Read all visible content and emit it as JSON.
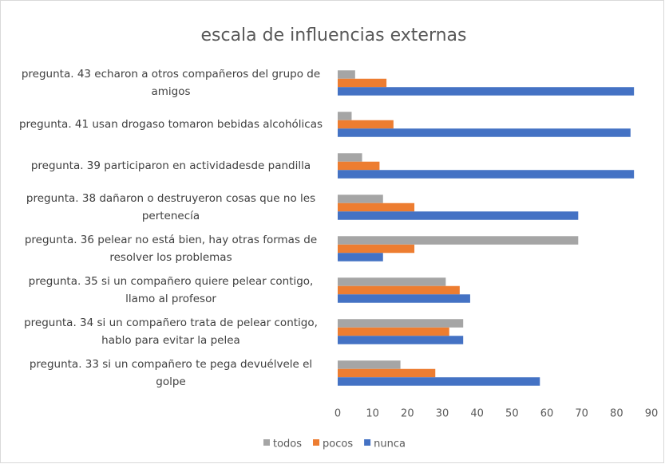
{
  "chart_data": {
    "type": "bar",
    "orientation": "horizontal",
    "title": "escala de influencias externas",
    "categories": [
      "pregunta. 43 echaron a otros compañeros del grupo de amigos",
      "pregunta. 41 usan drogaso tomaron bebidas alcohólicas",
      "pregunta. 39 participaron en actividadesde pandilla",
      "pregunta. 38 dañaron o destruyeron cosas que no les pertenecía",
      "pregunta. 36 pelear no está bien, hay otras formas de resolver los problemas",
      "pregunta. 35 si un compañero quiere pelear contigo, llamo al profesor",
      "pregunta. 34 si un compañero trata de pelear contigo, hablo para evitar la pelea",
      "pregunta. 33 si un compañero te pega devuélvele el golpe"
    ],
    "series": [
      {
        "name": "todos",
        "color": "#a5a5a5",
        "values": [
          5,
          4,
          7,
          13,
          69,
          31,
          36,
          18
        ]
      },
      {
        "name": "pocos",
        "color": "#ed7d31",
        "values": [
          14,
          16,
          12,
          22,
          22,
          35,
          32,
          28
        ]
      },
      {
        "name": "nunca",
        "color": "#4472c4",
        "values": [
          85,
          84,
          85,
          69,
          13,
          38,
          36,
          58
        ]
      }
    ],
    "xlim": [
      0,
      90
    ],
    "xticks": [
      0,
      10,
      20,
      30,
      40,
      50,
      60,
      70,
      80,
      90
    ],
    "grid": false,
    "legend": "bottom"
  }
}
